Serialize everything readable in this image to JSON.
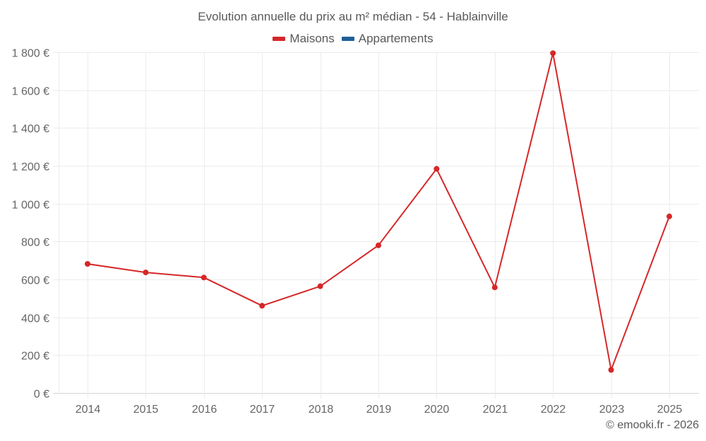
{
  "chart": {
    "title": "Evolution annuelle du prix au m² médian - 54 - Hablainville",
    "credit": "© emooki.fr - 2026",
    "legend": [
      {
        "label": "Maisons",
        "color": "#d62728"
      },
      {
        "label": "Appartements",
        "color": "#1f5f99"
      }
    ]
  },
  "chart_data": {
    "type": "line",
    "title": "Evolution annuelle du prix au m² médian - 54 - Hablainville",
    "xlabel": "",
    "ylabel": "",
    "x": [
      "2014",
      "2015",
      "2016",
      "2017",
      "2018",
      "2019",
      "2020",
      "2021",
      "2022",
      "2023",
      "2025"
    ],
    "series": [
      {
        "name": "Maisons",
        "color": "#d62728",
        "values": [
          682,
          637,
          610,
          461,
          564,
          780,
          1184,
          558,
          1795,
          122,
          933
        ]
      },
      {
        "name": "Appartements",
        "color": "#1f5f99",
        "values": []
      }
    ],
    "yticks": [
      "0 €",
      "200 €",
      "400 €",
      "600 €",
      "800 €",
      "1 000 €",
      "1 200 €",
      "1 400 €",
      "1 600 €",
      "1 800 €"
    ],
    "ylim": [
      0,
      1800
    ],
    "grid": true,
    "legend_position": "top"
  }
}
